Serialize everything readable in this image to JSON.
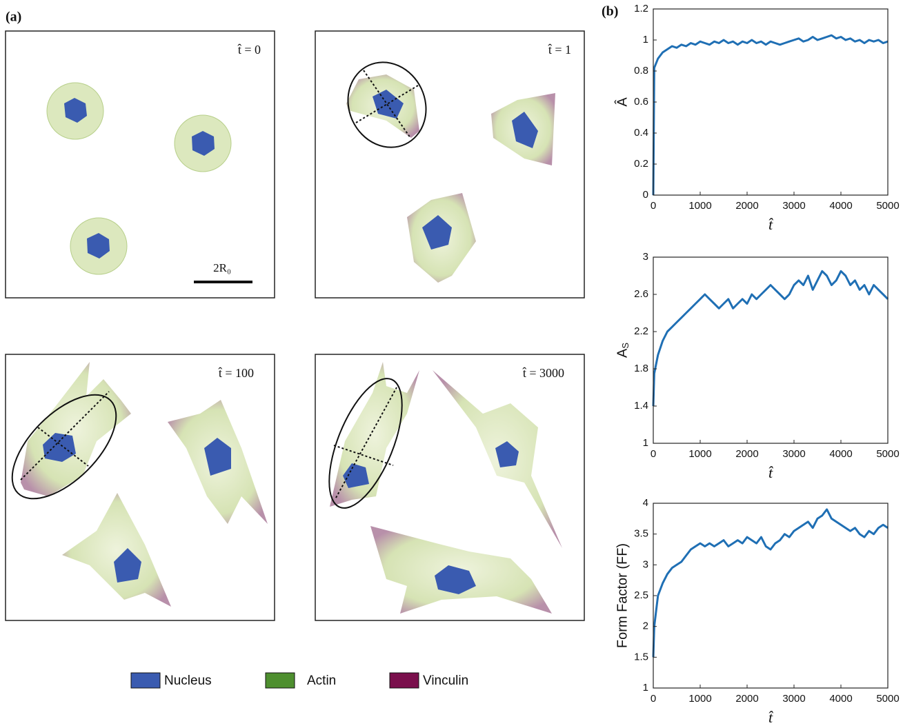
{
  "panel_labels": [
    "(a)",
    "(b)"
  ],
  "cells": {
    "time_labels": [
      "t̂  = 0",
      "t̂  = 1",
      "t̂  = 100",
      "t̂  = 3000"
    ],
    "scale_bar": "2R₀",
    "legend": [
      {
        "name": "Nucleus",
        "color": "#3a5bb0"
      },
      {
        "name": "Actin",
        "color": "#4e8f2f"
      },
      {
        "name": "Vinculin",
        "color": "#7a0f4c"
      }
    ]
  },
  "chart_data": [
    {
      "type": "line",
      "x_label": "t̂",
      "y_label": "Â",
      "color": "#1f6fb4",
      "x": [
        0,
        20,
        100,
        200,
        300,
        400,
        500,
        600,
        700,
        800,
        900,
        1000,
        1100,
        1200,
        1300,
        1400,
        1500,
        1600,
        1700,
        1800,
        1900,
        2000,
        2100,
        2200,
        2300,
        2400,
        2500,
        2600,
        2700,
        2800,
        2900,
        3000,
        3100,
        3200,
        3300,
        3400,
        3500,
        3600,
        3700,
        3800,
        3900,
        4000,
        4100,
        4200,
        4300,
        4400,
        4500,
        4600,
        4700,
        4800,
        4900,
        5000
      ],
      "values": [
        0,
        0.82,
        0.88,
        0.92,
        0.94,
        0.96,
        0.95,
        0.97,
        0.96,
        0.98,
        0.97,
        0.99,
        0.98,
        0.97,
        0.99,
        0.98,
        1.0,
        0.98,
        0.99,
        0.97,
        0.99,
        0.98,
        1.0,
        0.98,
        0.99,
        0.97,
        0.99,
        0.98,
        0.97,
        0.98,
        0.99,
        1.0,
        1.01,
        0.99,
        1.0,
        1.02,
        1.0,
        1.01,
        1.02,
        1.03,
        1.01,
        1.02,
        1.0,
        1.01,
        0.99,
        1.0,
        0.98,
        1.0,
        0.99,
        1.0,
        0.98,
        0.99
      ],
      "xlim": [
        0,
        5000
      ],
      "xticks": [
        0,
        1000,
        2000,
        3000,
        4000,
        5000
      ],
      "ylim": [
        0,
        1.2
      ],
      "yticks": [
        0,
        0.2,
        0.4,
        0.6,
        0.8,
        1,
        1.2
      ]
    },
    {
      "type": "line",
      "x_label": "t̂",
      "y_label": "A",
      "y_label_subscript": "S",
      "color": "#1f6fb4",
      "x": [
        0,
        20,
        100,
        200,
        300,
        400,
        500,
        600,
        700,
        800,
        900,
        1000,
        1100,
        1200,
        1300,
        1400,
        1500,
        1600,
        1700,
        1800,
        1900,
        2000,
        2100,
        2200,
        2300,
        2400,
        2500,
        2600,
        2700,
        2800,
        2900,
        3000,
        3100,
        3200,
        3300,
        3400,
        3500,
        3600,
        3700,
        3800,
        3900,
        4000,
        4100,
        4200,
        4300,
        4400,
        4500,
        4600,
        4700,
        4800,
        4900,
        5000
      ],
      "values": [
        1.4,
        1.75,
        1.95,
        2.1,
        2.2,
        2.25,
        2.3,
        2.35,
        2.4,
        2.45,
        2.5,
        2.55,
        2.6,
        2.55,
        2.5,
        2.45,
        2.5,
        2.55,
        2.45,
        2.5,
        2.55,
        2.5,
        2.6,
        2.55,
        2.6,
        2.65,
        2.7,
        2.65,
        2.6,
        2.55,
        2.6,
        2.7,
        2.75,
        2.7,
        2.8,
        2.65,
        2.75,
        2.85,
        2.8,
        2.7,
        2.75,
        2.85,
        2.8,
        2.7,
        2.75,
        2.65,
        2.7,
        2.6,
        2.7,
        2.65,
        2.6,
        2.55
      ],
      "xlim": [
        0,
        5000
      ],
      "xticks": [
        0,
        1000,
        2000,
        3000,
        4000,
        5000
      ],
      "ylim": [
        1,
        3
      ],
      "yticks": [
        1,
        1.4,
        1.8,
        2.2,
        2.6,
        3
      ]
    },
    {
      "type": "line",
      "x_label": "t̂",
      "y_label": "Form Factor (FF)",
      "color": "#1f6fb4",
      "x": [
        0,
        20,
        100,
        200,
        300,
        400,
        500,
        600,
        700,
        800,
        900,
        1000,
        1100,
        1200,
        1300,
        1400,
        1500,
        1600,
        1700,
        1800,
        1900,
        2000,
        2100,
        2200,
        2300,
        2400,
        2500,
        2600,
        2700,
        2800,
        2900,
        3000,
        3100,
        3200,
        3300,
        3400,
        3500,
        3600,
        3700,
        3800,
        3900,
        4000,
        4100,
        4200,
        4300,
        4400,
        4500,
        4600,
        4700,
        4800,
        4900,
        5000
      ],
      "values": [
        1.5,
        2.0,
        2.5,
        2.7,
        2.85,
        2.95,
        3.0,
        3.05,
        3.15,
        3.25,
        3.3,
        3.35,
        3.3,
        3.35,
        3.3,
        3.35,
        3.4,
        3.3,
        3.35,
        3.4,
        3.35,
        3.45,
        3.4,
        3.35,
        3.45,
        3.3,
        3.25,
        3.35,
        3.4,
        3.5,
        3.45,
        3.55,
        3.6,
        3.65,
        3.7,
        3.6,
        3.75,
        3.8,
        3.9,
        3.75,
        3.7,
        3.65,
        3.6,
        3.55,
        3.6,
        3.5,
        3.45,
        3.55,
        3.5,
        3.6,
        3.65,
        3.6
      ],
      "xlim": [
        0,
        5000
      ],
      "xticks": [
        0,
        1000,
        2000,
        3000,
        4000,
        5000
      ],
      "ylim": [
        1,
        4
      ],
      "yticks": [
        1,
        1.5,
        2,
        2.5,
        3,
        3.5,
        4
      ]
    }
  ]
}
